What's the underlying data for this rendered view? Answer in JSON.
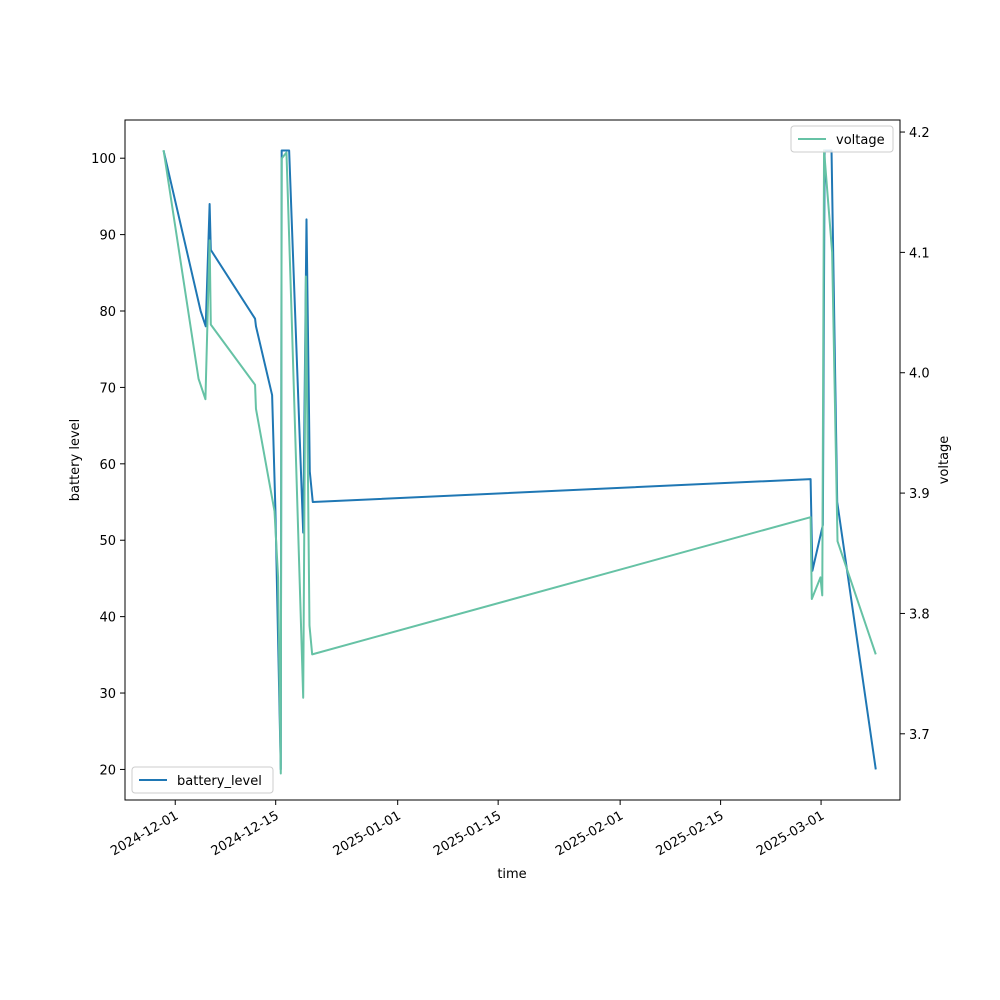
{
  "chart_data": {
    "type": "line",
    "xlabel": "time",
    "ylabel_left": "battery level",
    "ylabel_right": "voltage",
    "xlim": [
      "2024-11-24T00:00",
      "2025-03-12T00:00"
    ],
    "ylim_left": [
      16,
      105
    ],
    "ylim_right": [
      3.645,
      4.21
    ],
    "x_ticks": [
      "2024-12-01",
      "2024-12-15",
      "2025-01-01",
      "2025-01-15",
      "2025-02-01",
      "2025-02-15",
      "2025-03-01"
    ],
    "y_ticks_left": [
      20,
      30,
      40,
      50,
      60,
      70,
      80,
      90,
      100
    ],
    "y_ticks_right": [
      "3.7",
      "3.8",
      "3.9",
      "4.0",
      "4.1",
      "4.2"
    ],
    "grid": false,
    "legends": [
      {
        "series": "battery_level",
        "placement": "lower-left"
      },
      {
        "series": "voltage",
        "placement": "upper-right"
      }
    ],
    "series": [
      {
        "name": "battery_level",
        "axis": "left",
        "color": "#1f77b4",
        "points": [
          [
            "2024-11-29T09:00",
            101
          ],
          [
            "2024-12-04T13:00",
            80
          ],
          [
            "2024-12-05T06:00",
            78
          ],
          [
            "2024-12-05T19:00",
            94
          ],
          [
            "2024-12-05T23:00",
            88
          ],
          [
            "2024-12-12T03:00",
            79
          ],
          [
            "2024-12-12T06:00",
            78
          ],
          [
            "2024-12-14T12:00",
            69
          ],
          [
            "2024-12-14T23:00",
            54
          ],
          [
            "2024-12-15T17:00",
            20
          ],
          [
            "2024-12-15T20:00",
            101
          ],
          [
            "2024-12-16T21:00",
            101
          ],
          [
            "2024-12-18T20:00",
            51
          ],
          [
            "2024-12-19T07:00",
            92
          ],
          [
            "2024-12-19T18:00",
            59
          ],
          [
            "2024-12-20T04:00",
            55
          ],
          [
            "2025-02-27T13:00",
            58
          ],
          [
            "2025-02-27T19:00",
            46
          ],
          [
            "2025-03-01T06:00",
            52
          ],
          [
            "2025-03-01T12:00",
            101
          ],
          [
            "2025-03-02T11:00",
            101
          ],
          [
            "2025-03-03T06:00",
            55
          ],
          [
            "2025-03-08T15:00",
            20
          ]
        ]
      },
      {
        "name": "voltage",
        "axis": "right",
        "color": "#66c2a5",
        "points": [
          [
            "2024-11-29T09:00",
            4.185
          ],
          [
            "2024-12-04T06:00",
            3.995
          ],
          [
            "2024-12-05T05:00",
            3.978
          ],
          [
            "2024-12-05T19:00",
            4.11
          ],
          [
            "2024-12-05T23:00",
            4.04
          ],
          [
            "2024-12-12T03:00",
            3.99
          ],
          [
            "2024-12-12T06:00",
            3.97
          ],
          [
            "2024-12-14T20:00",
            3.885
          ],
          [
            "2024-12-15T08:00",
            3.83
          ],
          [
            "2024-12-15T17:00",
            3.667
          ],
          [
            "2024-12-15T20:00",
            4.178
          ],
          [
            "2024-12-16T12:00",
            4.183
          ],
          [
            "2024-12-17T05:00",
            4.05
          ],
          [
            "2024-12-18T20:00",
            3.73
          ],
          [
            "2024-12-19T05:00",
            4.08
          ],
          [
            "2024-12-19T17:00",
            3.79
          ],
          [
            "2024-12-20T02:00",
            3.766
          ],
          [
            "2025-02-27T13:00",
            3.88
          ],
          [
            "2025-02-27T17:00",
            3.812
          ],
          [
            "2025-02-28T22:00",
            3.83
          ],
          [
            "2025-03-01T04:00",
            3.815
          ],
          [
            "2025-03-01T10:00",
            4.185
          ],
          [
            "2025-03-02T13:00",
            4.1
          ],
          [
            "2025-03-03T07:00",
            3.86
          ],
          [
            "2025-03-08T15:00",
            3.766
          ]
        ]
      }
    ]
  }
}
